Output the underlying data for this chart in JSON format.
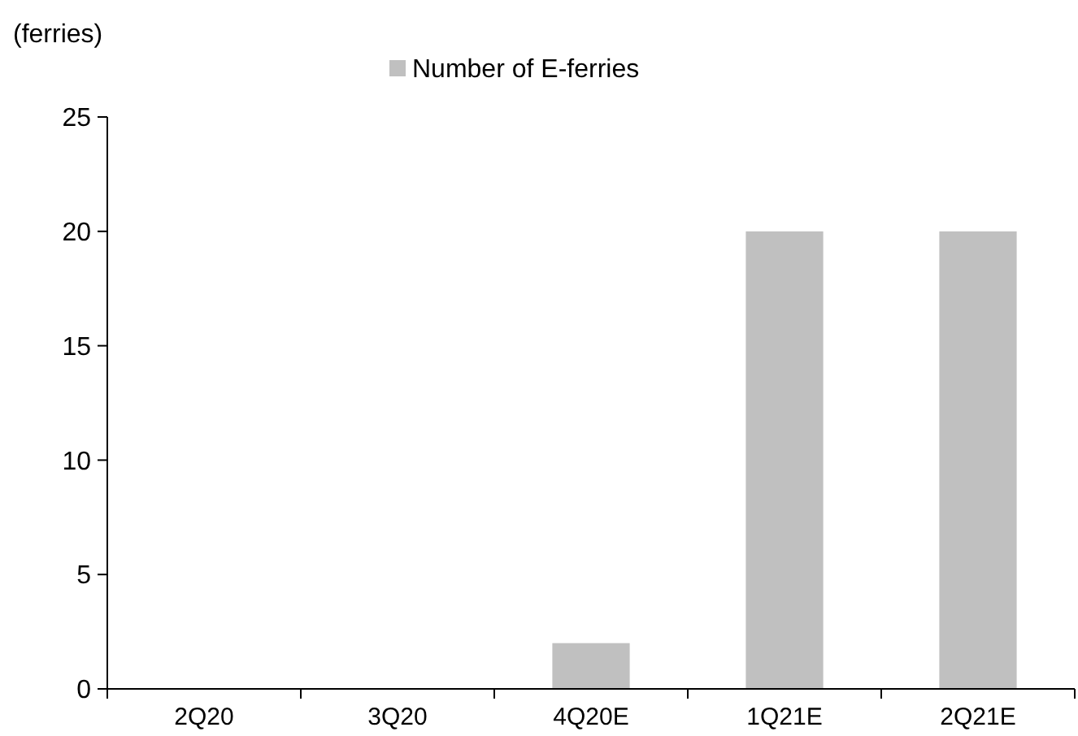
{
  "chart_data": {
    "type": "bar",
    "ylabel": "(ferries)",
    "categories": [
      "2Q20",
      "3Q20",
      "4Q20E",
      "1Q21E",
      "2Q21E"
    ],
    "series": [
      {
        "name": "Number of E-ferries",
        "color": "#c0c0c0",
        "values": [
          0,
          0,
          2,
          20,
          20
        ]
      }
    ],
    "ylim": [
      0,
      25
    ],
    "yticks": [
      0,
      5,
      10,
      15,
      20,
      25
    ],
    "grid": false,
    "legend": "top"
  }
}
